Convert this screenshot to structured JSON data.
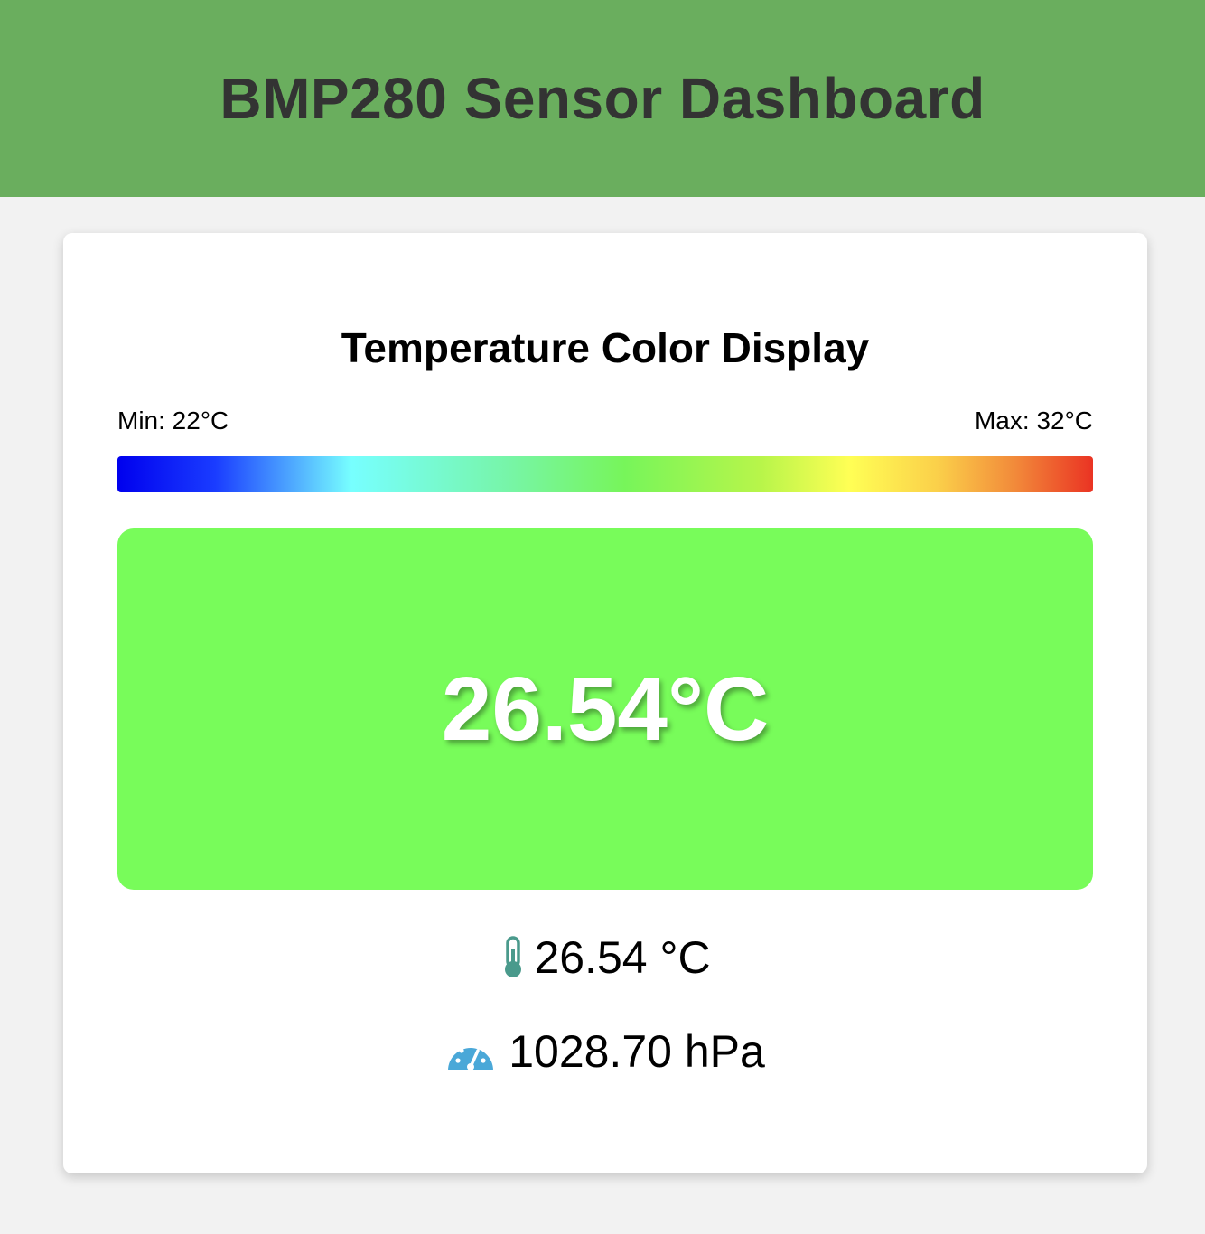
{
  "header": {
    "title": "BMP280 Sensor Dashboard"
  },
  "card": {
    "title": "Temperature Color Display",
    "scale": {
      "min_label": "Min: 22°C",
      "max_label": "Max: 32°C",
      "min_value": 22,
      "max_value": 32
    },
    "display": {
      "temperature_text": "26.54°C",
      "color": "#78fc5a"
    },
    "readings": {
      "temperature": {
        "icon": "thermometer-icon",
        "text": "26.54 °C"
      },
      "pressure": {
        "icon": "gauge-icon",
        "text": "1028.70 hPa"
      }
    }
  },
  "colors": {
    "header_bg": "#6aae5e",
    "page_bg": "#f2f2f2",
    "thermometer_icon": "#4a9a8c",
    "gauge_icon": "#4aa8d8"
  }
}
